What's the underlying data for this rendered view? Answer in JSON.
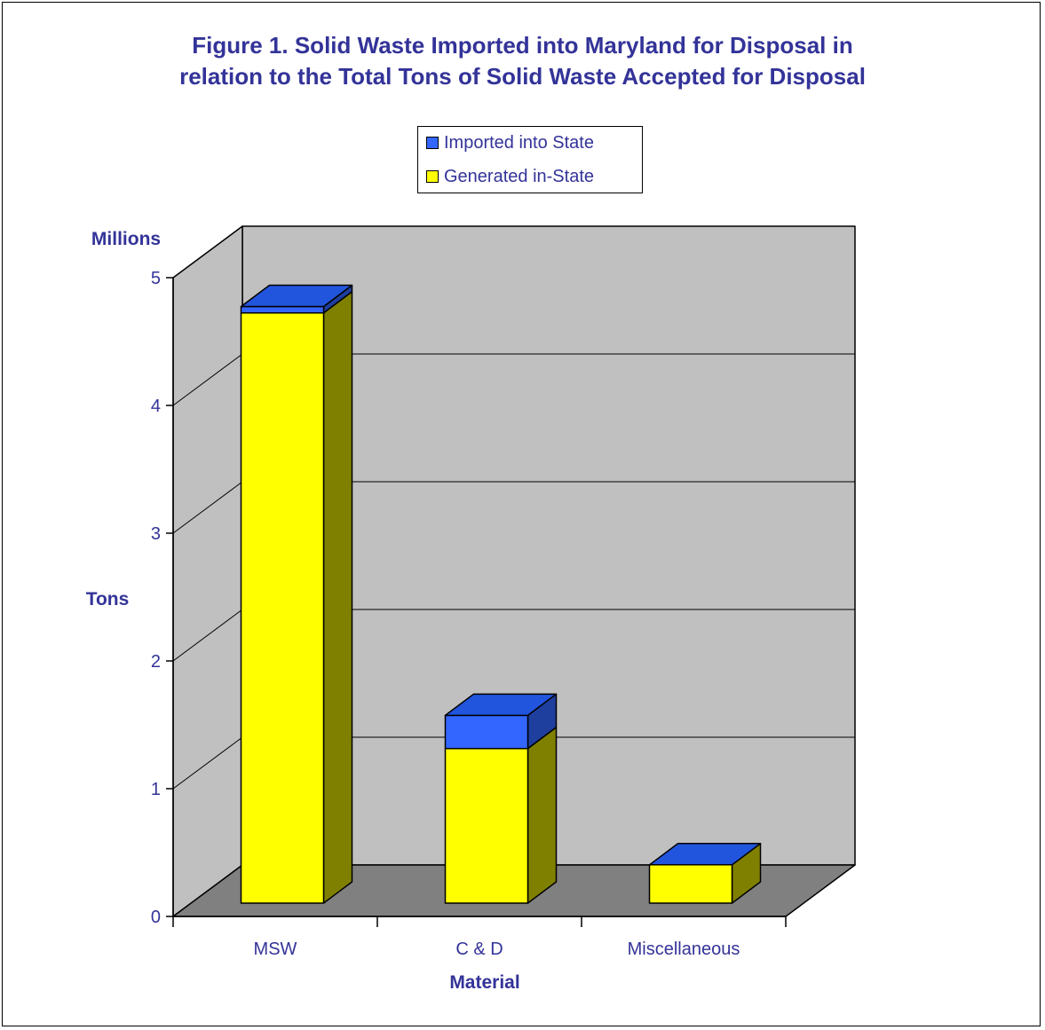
{
  "chart_data": {
    "type": "bar",
    "stacked": true,
    "three_d": true,
    "title_lines": [
      "Figure 1. Solid Waste Imported into Maryland for Disposal in",
      "relation to the Total Tons of Solid Waste Accepted for Disposal"
    ],
    "categories": [
      "MSW",
      "C & D",
      "Miscellaneous"
    ],
    "series": [
      {
        "name": "Generated in-State",
        "values": [
          4.62,
          1.21,
          0.3
        ],
        "color": "#FFFF00"
      },
      {
        "name": "Imported into State",
        "values": [
          0.05,
          0.26,
          0.0
        ],
        "color": "#3366FF"
      }
    ],
    "legend_order": [
      "Imported into State",
      "Generated in-State"
    ],
    "legend_position": "top-center",
    "xlabel": "Material",
    "ylabel": "Tons",
    "yunit_label": "Millions",
    "ylim": [
      0,
      5
    ],
    "yticks": [
      "0",
      "1",
      "2",
      "3",
      "4",
      "5"
    ],
    "grid": true,
    "colors": {
      "text": "#333399",
      "wall": "#C0C0C0",
      "floor": "#808080",
      "generated_side": "#808000",
      "imported_side": "#1F3F9F"
    }
  }
}
